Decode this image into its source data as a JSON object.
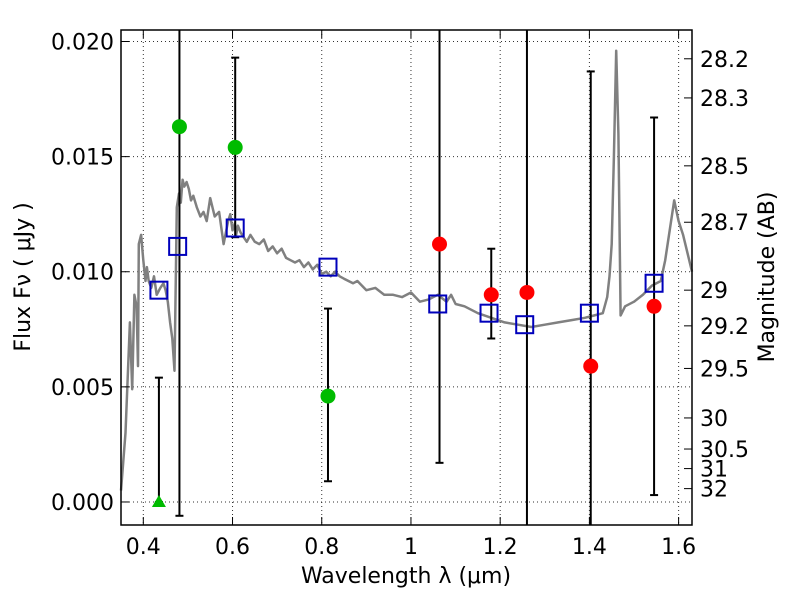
{
  "chart_data": {
    "type": "scatter",
    "xlabel": "Wavelength  λ (μm)",
    "ylabel": "Flux  Fν  ( μJy )",
    "ylabel_right": "Magnitude (AB)",
    "xlim": [
      0.35,
      1.63
    ],
    "ylim": [
      -0.001,
      0.0205
    ],
    "x_ticks": [
      0.4,
      0.6,
      0.8,
      1.0,
      1.2,
      1.4,
      1.6
    ],
    "x_tick_labels": [
      "0.4",
      "0.6",
      "0.8",
      "1",
      "1.2",
      "1.4",
      "1.6"
    ],
    "y_ticks": [
      0.0,
      0.005,
      0.01,
      0.015,
      0.02
    ],
    "y_tick_labels": [
      "0.000",
      "0.005",
      "0.010",
      "0.015",
      "0.020"
    ],
    "mag_ticks": [
      {
        "label": "28.2",
        "flux": 0.01925
      },
      {
        "label": "28.3",
        "flux": 0.01755
      },
      {
        "label": "28.5",
        "flux": 0.0146
      },
      {
        "label": "28.7",
        "flux": 0.01215
      },
      {
        "label": "29",
        "flux": 0.0092
      },
      {
        "label": "29.2",
        "flux": 0.00765
      },
      {
        "label": "29.5",
        "flux": 0.0058
      },
      {
        "label": "30",
        "flux": 0.00365
      },
      {
        "label": "30.5",
        "flux": 0.0023
      },
      {
        "label": "31",
        "flux": 0.00145
      },
      {
        "label": "32",
        "flux": 0.00058
      }
    ],
    "grid": true,
    "series": [
      {
        "name": "model-spectrum",
        "kind": "line",
        "color": "#808080",
        "x": [
          0.35,
          0.36,
          0.37,
          0.375,
          0.38,
          0.385,
          0.388,
          0.39,
          0.395,
          0.4,
          0.405,
          0.408,
          0.412,
          0.418,
          0.424,
          0.43,
          0.438,
          0.445,
          0.45,
          0.455,
          0.46,
          0.465,
          0.47,
          0.475,
          0.48,
          0.484,
          0.488,
          0.492,
          0.497,
          0.502,
          0.507,
          0.512,
          0.52,
          0.528,
          0.535,
          0.542,
          0.55,
          0.56,
          0.57,
          0.58,
          0.59,
          0.595,
          0.6,
          0.605,
          0.608,
          0.612,
          0.618,
          0.625,
          0.632,
          0.64,
          0.65,
          0.66,
          0.67,
          0.68,
          0.69,
          0.7,
          0.71,
          0.72,
          0.73,
          0.74,
          0.75,
          0.76,
          0.77,
          0.78,
          0.79,
          0.8,
          0.81,
          0.82,
          0.83,
          0.84,
          0.85,
          0.86,
          0.87,
          0.88,
          0.89,
          0.9,
          0.92,
          0.94,
          0.96,
          0.98,
          1.0,
          1.02,
          1.04,
          1.06,
          1.08,
          1.09,
          1.1,
          1.12,
          1.15,
          1.18,
          1.21,
          1.24,
          1.27,
          1.3,
          1.33,
          1.36,
          1.39,
          1.41,
          1.43,
          1.44,
          1.445,
          1.45,
          1.455,
          1.46,
          1.465,
          1.47,
          1.48,
          1.5,
          1.52,
          1.54,
          1.56,
          1.57,
          1.58,
          1.59,
          1.6,
          1.61,
          1.63
        ],
        "y": [
          0.0005,
          0.003,
          0.0078,
          0.0049,
          0.009,
          0.0085,
          0.0059,
          0.0112,
          0.0116,
          0.0105,
          0.0096,
          0.0102,
          0.0096,
          0.0093,
          0.0098,
          0.009,
          0.0093,
          0.0095,
          0.0092,
          0.0087,
          0.0078,
          0.0071,
          0.0057,
          0.0128,
          0.0134,
          0.013,
          0.014,
          0.0137,
          0.0139,
          0.0136,
          0.0131,
          0.0133,
          0.0128,
          0.0124,
          0.0126,
          0.0122,
          0.0132,
          0.0124,
          0.0126,
          0.0112,
          0.0122,
          0.0125,
          0.0118,
          0.0121,
          0.0116,
          0.012,
          0.0117,
          0.0115,
          0.0113,
          0.0116,
          0.0113,
          0.0112,
          0.0114,
          0.0109,
          0.0111,
          0.0108,
          0.011,
          0.0106,
          0.0105,
          0.0104,
          0.0105,
          0.0102,
          0.0104,
          0.0101,
          0.0103,
          0.0099,
          0.01,
          0.0098,
          0.01,
          0.0098,
          0.0097,
          0.0096,
          0.0095,
          0.0096,
          0.0094,
          0.0092,
          0.0093,
          0.009,
          0.009,
          0.0089,
          0.0091,
          0.0087,
          0.0088,
          0.009,
          0.0087,
          0.009,
          0.0086,
          0.0085,
          0.0082,
          0.008,
          0.0078,
          0.0077,
          0.0076,
          0.0077,
          0.0078,
          0.0079,
          0.008,
          0.0081,
          0.0082,
          0.0089,
          0.0098,
          0.0112,
          0.015,
          0.0196,
          0.016,
          0.0081,
          0.0085,
          0.0087,
          0.009,
          0.0094,
          0.0096,
          0.0105,
          0.0118,
          0.0131,
          0.0122,
          0.0116,
          0.01
        ]
      },
      {
        "name": "model-band-fluxes",
        "kind": "marker",
        "marker": "open-square",
        "color": "#0000bb",
        "x": [
          0.435,
          0.477,
          0.606,
          0.814,
          1.06,
          1.175,
          1.255,
          1.4,
          1.545
        ],
        "y": [
          0.0092,
          0.0111,
          0.0119,
          0.0102,
          0.0086,
          0.0082,
          0.0077,
          0.0082,
          0.0095
        ]
      },
      {
        "name": "observed-green",
        "kind": "marker",
        "marker": "filled-circle",
        "color": "#00bb00",
        "x": [
          0.481,
          0.606,
          0.814
        ],
        "y": [
          0.0163,
          0.0154,
          0.0046
        ],
        "yerr_low": [
          -0.0006,
          0.0115,
          0.0009
        ],
        "yerr_high": [
          0.023,
          0.0193,
          0.0084
        ]
      },
      {
        "name": "observed-upper-limit",
        "kind": "marker",
        "marker": "filled-triangle",
        "color": "#00bb00",
        "x": [
          0.435
        ],
        "y": [
          0.0
        ],
        "yerr_low": [
          0.0
        ],
        "yerr_high": [
          0.0054
        ]
      },
      {
        "name": "observed-red",
        "kind": "marker",
        "marker": "filled-circle",
        "color": "#ff0000",
        "x": [
          1.064,
          1.18,
          1.26,
          1.403,
          1.545
        ],
        "y": [
          0.0112,
          0.009,
          0.0091,
          0.0059,
          0.0085
        ],
        "yerr_low": [
          0.0017,
          0.0071,
          -0.0025,
          -0.0025,
          0.0003
        ],
        "yerr_high": [
          0.023,
          0.011,
          0.023,
          0.0187,
          0.0167
        ]
      }
    ]
  }
}
